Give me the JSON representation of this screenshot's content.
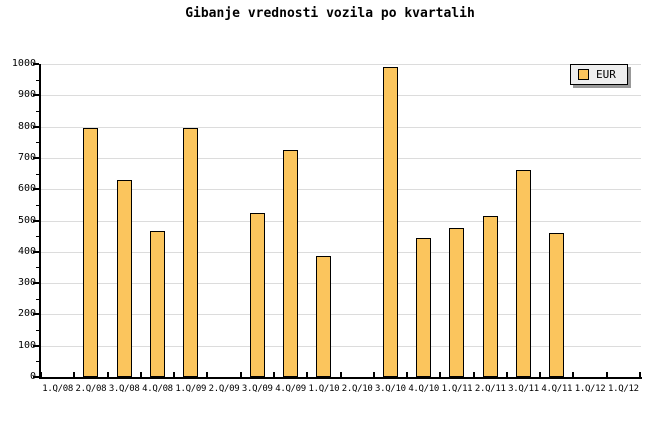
{
  "chart_data": {
    "type": "bar",
    "title": "Gibanje vrednosti vozila po kvartalih",
    "categories": [
      "1.Q/08",
      "2.Q/08",
      "3.Q/08",
      "4.Q/08",
      "1.Q/09",
      "2.Q/09",
      "3.Q/09",
      "4.Q/09",
      "1.Q/10",
      "2.Q/10",
      "3.Q/10",
      "4.Q/10",
      "1.Q/11",
      "2.Q/11",
      "3.Q/11",
      "4.Q/11",
      "1.Q/12",
      "1.Q/12"
    ],
    "series": [
      {
        "name": "EUR",
        "values": [
          null,
          795,
          630,
          465,
          795,
          null,
          525,
          725,
          385,
          null,
          990,
          445,
          475,
          515,
          660,
          460,
          null,
          null
        ]
      }
    ],
    "xlabel": "",
    "ylabel": "",
    "ylim": [
      0,
      1000
    ],
    "ytick_step": 100,
    "yminor_step": 50,
    "yticks": [
      0,
      100,
      200,
      300,
      400,
      500,
      600,
      700,
      800,
      900,
      1000
    ],
    "grid": true,
    "legend": {
      "label": "EUR",
      "position": "top-right"
    }
  },
  "colors": {
    "background": "#FFFFFF",
    "text": "#000000",
    "bar_fill": "#FBC55D",
    "bar_border": "#000000",
    "grid_line": "#DCDCDC",
    "axis": "#000000",
    "legend_bg": "#EEEEEE",
    "legend_border": "#000000",
    "legend_shadow": "#999999"
  }
}
